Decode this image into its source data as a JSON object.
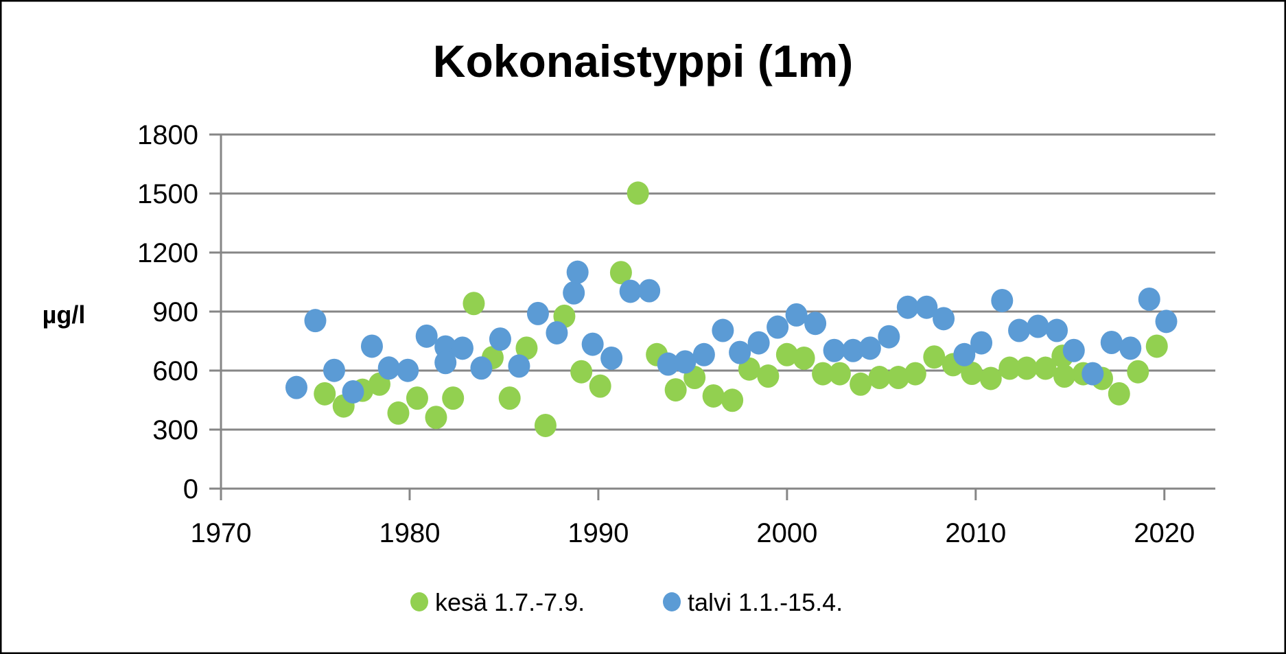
{
  "chart_data": {
    "type": "scatter",
    "title": "Kokonaistyppi (1m)",
    "xlabel": "",
    "ylabel": "µg/l",
    "xlim": [
      1970,
      2022.7
    ],
    "ylim": [
      0,
      1800
    ],
    "xticks": [
      1970,
      1980,
      1990,
      2000,
      2010,
      2020
    ],
    "yticks": [
      0,
      300,
      600,
      900,
      1200,
      1500,
      1800
    ],
    "grid": "horizontal",
    "legend_position": "bottom",
    "series": [
      {
        "name": "kesä 1.7.-7.9.",
        "color": "#92D050",
        "points": [
          [
            1975.5,
            482
          ],
          [
            1976.5,
            420
          ],
          [
            1977.5,
            500
          ],
          [
            1978.4,
            531
          ],
          [
            1979.4,
            384
          ],
          [
            1980.4,
            460
          ],
          [
            1981.4,
            362
          ],
          [
            1982.3,
            460
          ],
          [
            1983.4,
            941
          ],
          [
            1984.4,
            666
          ],
          [
            1985.3,
            460
          ],
          [
            1986.2,
            714
          ],
          [
            1987.2,
            321
          ],
          [
            1988.2,
            876
          ],
          [
            1989.1,
            594
          ],
          [
            1990.1,
            521
          ],
          [
            1991.2,
            1098
          ],
          [
            1992.1,
            1502
          ],
          [
            1993.1,
            681
          ],
          [
            1994.1,
            502
          ],
          [
            1995.1,
            565
          ],
          [
            1996.1,
            471
          ],
          [
            1997.1,
            449
          ],
          [
            1998.0,
            608
          ],
          [
            1999.0,
            572
          ],
          [
            2000.0,
            681
          ],
          [
            2000.9,
            663
          ],
          [
            2001.9,
            584
          ],
          [
            2002.8,
            584
          ],
          [
            2003.9,
            531
          ],
          [
            2004.9,
            565
          ],
          [
            2005.9,
            565
          ],
          [
            2006.8,
            584
          ],
          [
            2007.8,
            669
          ],
          [
            2008.8,
            630
          ],
          [
            2009.8,
            586
          ],
          [
            2010.8,
            560
          ],
          [
            2011.8,
            612
          ],
          [
            2012.7,
            612
          ],
          [
            2013.7,
            612
          ],
          [
            2014.6,
            673
          ],
          [
            2014.7,
            572
          ],
          [
            2015.7,
            584
          ],
          [
            2016.7,
            560
          ],
          [
            2017.6,
            482
          ],
          [
            2018.6,
            594
          ],
          [
            2019.6,
            724
          ]
        ]
      },
      {
        "name": "talvi 1.1.-15.4.",
        "color": "#5B9BD5",
        "points": [
          [
            1974.0,
            514
          ],
          [
            1975.0,
            854
          ],
          [
            1976.0,
            601
          ],
          [
            1977.0,
            492
          ],
          [
            1978.0,
            724
          ],
          [
            1978.9,
            613
          ],
          [
            1979.9,
            601
          ],
          [
            1980.9,
            775
          ],
          [
            1981.9,
            720
          ],
          [
            1981.9,
            641
          ],
          [
            1982.8,
            714
          ],
          [
            1983.8,
            613
          ],
          [
            1984.8,
            760
          ],
          [
            1985.8,
            623
          ],
          [
            1986.8,
            890
          ],
          [
            1987.8,
            792
          ],
          [
            1988.7,
            995
          ],
          [
            1988.9,
            1100
          ],
          [
            1989.7,
            734
          ],
          [
            1990.7,
            663
          ],
          [
            1991.7,
            1003
          ],
          [
            1992.7,
            1006
          ],
          [
            1993.7,
            633
          ],
          [
            1994.6,
            644
          ],
          [
            1995.6,
            681
          ],
          [
            1996.6,
            804
          ],
          [
            1997.5,
            692
          ],
          [
            1998.5,
            741
          ],
          [
            1999.5,
            821
          ],
          [
            2000.5,
            883
          ],
          [
            2001.5,
            840
          ],
          [
            2002.5,
            702
          ],
          [
            2003.5,
            702
          ],
          [
            2004.4,
            714
          ],
          [
            2005.4,
            772
          ],
          [
            2006.4,
            922
          ],
          [
            2007.4,
            922
          ],
          [
            2008.3,
            864
          ],
          [
            2009.4,
            681
          ],
          [
            2010.3,
            741
          ],
          [
            2011.4,
            956
          ],
          [
            2012.3,
            804
          ],
          [
            2013.3,
            825
          ],
          [
            2014.3,
            804
          ],
          [
            2015.2,
            702
          ],
          [
            2016.2,
            584
          ],
          [
            2017.2,
            743
          ],
          [
            2018.2,
            714
          ],
          [
            2019.2,
            963
          ],
          [
            2020.1,
            850
          ]
        ]
      }
    ]
  }
}
